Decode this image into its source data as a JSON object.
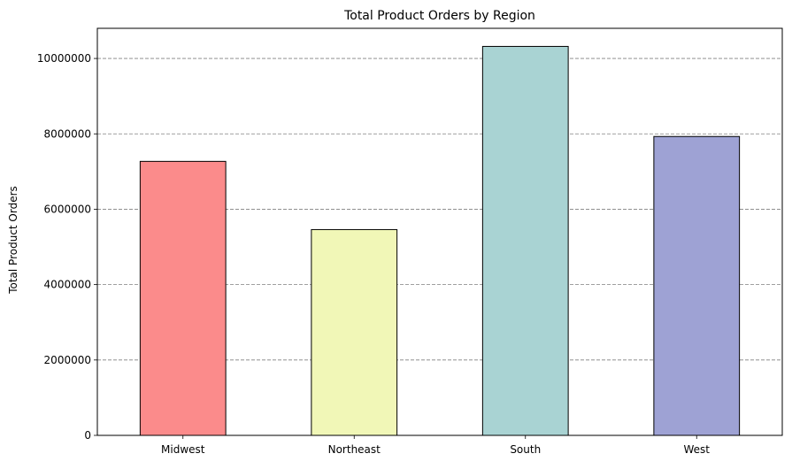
{
  "chart_data": {
    "type": "bar",
    "title": "Total Product Orders by Region",
    "xlabel": "",
    "ylabel": "Total Product Orders",
    "categories": [
      "Midwest",
      "Northeast",
      "South",
      "West"
    ],
    "values": [
      7270000,
      5460000,
      10320000,
      7930000
    ],
    "colors": [
      "#fb8b8b",
      "#f1f7b7",
      "#a9d3d3",
      "#9ea2d4"
    ],
    "edge_color": "#000000",
    "ylim": [
      0,
      10800000
    ],
    "yticks": [
      0,
      2000000,
      4000000,
      6000000,
      8000000,
      10000000
    ],
    "ytick_labels": [
      "0",
      "2000000",
      "4000000",
      "6000000",
      "8000000",
      "10000000"
    ],
    "grid": {
      "axis": "y",
      "style": "dashed",
      "color": "#808080"
    },
    "legend": "none"
  }
}
